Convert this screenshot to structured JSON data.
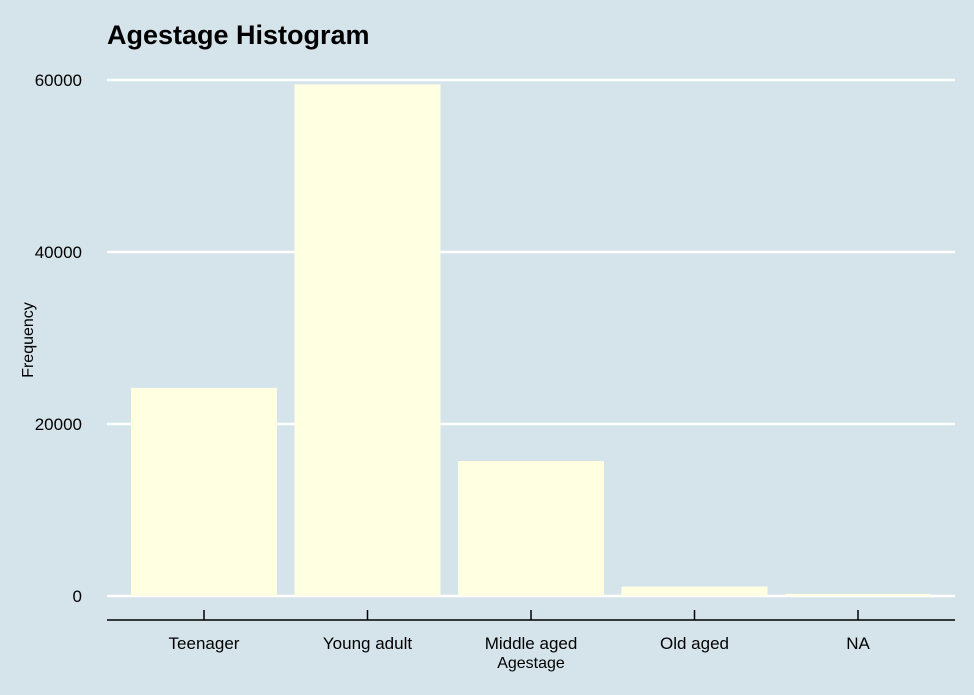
{
  "chart_data": {
    "type": "bar",
    "title": "Agestage Histogram",
    "xlabel": "Agestage",
    "ylabel": "Frequency",
    "categories": [
      "Teenager",
      "Young adult",
      "Middle aged",
      "Old aged",
      "NA"
    ],
    "values": [
      24200,
      59500,
      15700,
      1100,
      250
    ],
    "ylim": [
      0,
      60000
    ],
    "yticks": [
      0,
      20000,
      40000,
      60000
    ],
    "ytick_labels": [
      "0",
      "20000",
      "40000",
      "60000"
    ],
    "grid": "horizontal",
    "colors": {
      "background": "#d5e4eb",
      "bar": "#ffffe2",
      "grid": "#ffffff",
      "axis": "#000000"
    }
  }
}
